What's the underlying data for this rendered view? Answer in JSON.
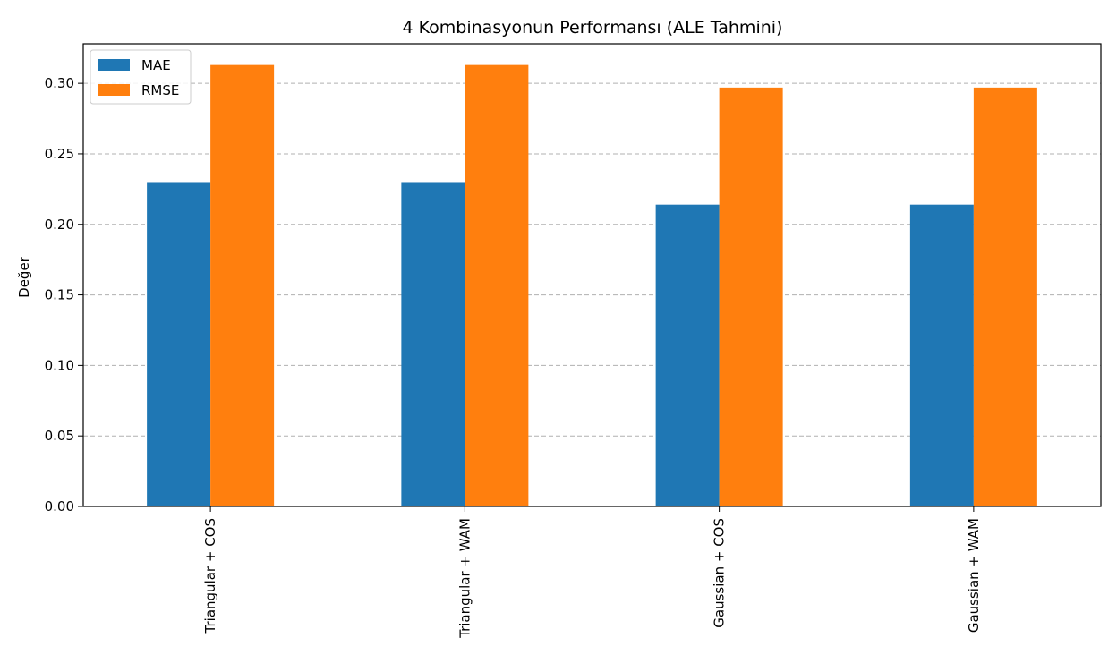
{
  "chart_data": {
    "type": "bar",
    "title": "4 Kombinasyonun Performansı (ALE Tahmini)",
    "xlabel": "",
    "ylabel": "Değer",
    "categories": [
      "Triangular + COS",
      "Triangular + WAM",
      "Gaussian + COS",
      "Gaussian + WAM"
    ],
    "series": [
      {
        "name": "MAE",
        "color": "#1f77b4",
        "values": [
          0.23,
          0.23,
          0.214,
          0.214
        ]
      },
      {
        "name": "RMSE",
        "color": "#ff7f0e",
        "values": [
          0.313,
          0.313,
          0.297,
          0.297
        ]
      }
    ],
    "ylim": [
      0,
      0.328
    ],
    "yticks": [
      "0.00",
      "0.05",
      "0.10",
      "0.15",
      "0.20",
      "0.25",
      "0.30"
    ],
    "grid": "y-dashed",
    "legend_position": "upper-left"
  }
}
